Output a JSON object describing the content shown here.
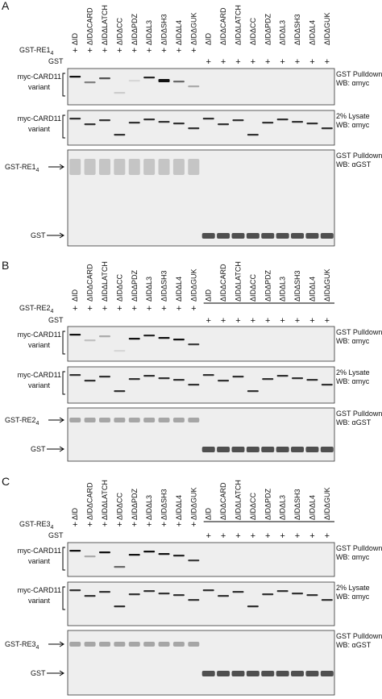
{
  "lanes": [
    "ΔID",
    "ΔIDΔCARD",
    "ΔIDΔLATCH",
    "ΔIDΔCC",
    "ΔIDΔPDZ",
    "ΔIDΔL3",
    "ΔIDΔSH3",
    "ΔIDΔL4",
    "ΔIDΔGUK"
  ],
  "plus": "+",
  "myc_label": [
    "myc-CARD11",
    "variant"
  ],
  "control": "GST",
  "right_labels": [
    [
      "GST Pulldown",
      "WB: αmyc"
    ],
    [
      "2% Lysate",
      "WB: αmyc"
    ],
    [
      "GST Pulldown",
      "WB: αGST"
    ]
  ],
  "panels": [
    {
      "letter": "A",
      "bait": "GST-RE1",
      "bait_sub": "4"
    },
    {
      "letter": "B",
      "bait": "GST-RE2",
      "bait_sub": "4"
    },
    {
      "letter": "C",
      "bait": "GST-RE3",
      "bait_sub": "4"
    }
  ]
}
